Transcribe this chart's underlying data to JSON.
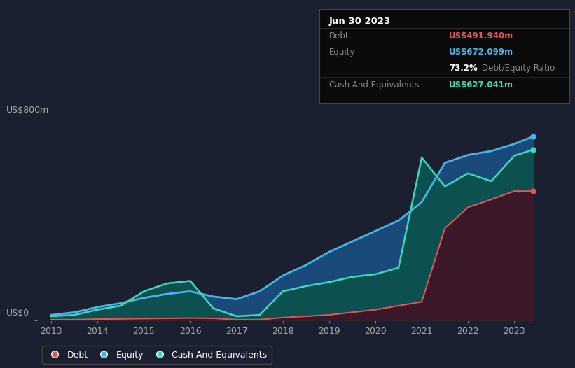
{
  "bg_color": "#1b2030",
  "plot_bg_color": "#1b2030",
  "grid_color": "#2a3050",
  "ylabel_text": "US$800m",
  "y0_label": "US$0",
  "years": [
    2013.0,
    2013.5,
    2014.0,
    2014.5,
    2015.0,
    2015.5,
    2016.0,
    2016.5,
    2017.0,
    2017.5,
    2018.0,
    2018.5,
    2019.0,
    2019.5,
    2020.0,
    2020.5,
    2021.0,
    2021.5,
    2022.0,
    2022.5,
    2023.0,
    2023.4
  ],
  "debt": [
    2,
    2,
    4,
    5,
    6,
    7,
    8,
    7,
    2,
    2,
    10,
    15,
    20,
    30,
    40,
    55,
    70,
    350,
    430,
    460,
    492,
    492
  ],
  "equity": [
    20,
    30,
    50,
    65,
    85,
    100,
    110,
    90,
    80,
    110,
    170,
    210,
    260,
    300,
    340,
    380,
    450,
    600,
    630,
    645,
    672,
    700
  ],
  "cash": [
    15,
    20,
    40,
    55,
    110,
    140,
    150,
    45,
    15,
    20,
    110,
    130,
    145,
    165,
    175,
    200,
    620,
    510,
    560,
    530,
    627,
    650
  ],
  "debt_color": "#e05555",
  "equity_color": "#4ab3e8",
  "cash_color": "#3ddbb8",
  "equity_fill": "#1a4a7a",
  "cash_fill": "#0d5050",
  "annotation_title": "Jun 30 2023",
  "debt_label": "Debt",
  "equity_label": "Equity",
  "cash_label": "Cash And Equivalents",
  "debt_value": "US$491.940m",
  "equity_value": "US$672.099m",
  "ratio_value": "73.2%",
  "ratio_suffix": " Debt/Equity Ratio",
  "cash_value": "US$627.041m",
  "xlim": [
    2012.7,
    2024.0
  ],
  "ylim": [
    0,
    870
  ],
  "xtick_years": [
    2013,
    2014,
    2015,
    2016,
    2017,
    2018,
    2019,
    2020,
    2021,
    2022,
    2023
  ]
}
